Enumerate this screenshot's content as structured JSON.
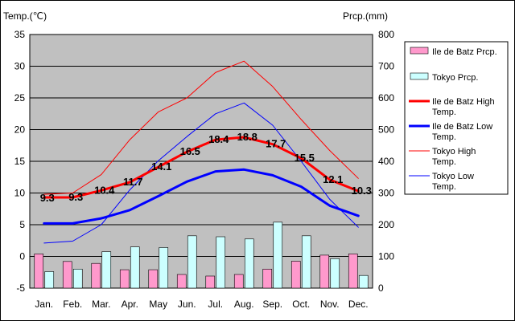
{
  "chart_data": {
    "type": "bar+line",
    "categories": [
      "Jan.",
      "Feb.",
      "Mar.",
      "Apr.",
      "May",
      "Jun.",
      "Jul.",
      "Aug.",
      "Sep.",
      "Oct.",
      "Nov.",
      "Dec."
    ],
    "y_left_label": "Temp.(℃)",
    "y_right_label": "Prcp.(mm)",
    "y_left_range": [
      -5,
      35
    ],
    "y_left_ticks": [
      "35",
      "30",
      "25",
      "20",
      "15",
      "10",
      "5",
      "0",
      "-5"
    ],
    "y_right_range": [
      0,
      800
    ],
    "y_right_ticks": [
      "800",
      "700",
      "600",
      "500",
      "400",
      "300",
      "200",
      "100",
      "0"
    ],
    "grid": true,
    "legend_position": "right",
    "bar_series": [
      {
        "name": "Ile de Batz Prcp.",
        "color": "#ff99cc",
        "values": [
          108,
          84,
          78,
          58,
          58,
          43,
          38,
          43,
          60,
          85,
          104,
          108
        ]
      },
      {
        "name": "Tokyo Prcp.",
        "color": "#ccffff",
        "values": [
          52,
          60,
          115,
          130,
          128,
          165,
          162,
          155,
          208,
          165,
          93,
          40
        ]
      }
    ],
    "line_series": [
      {
        "name": "Ile de Batz High Temp.",
        "color": "#ff0000",
        "width": 3,
        "values": [
          9.3,
          9.3,
          10.4,
          11.7,
          14.1,
          16.5,
          18.4,
          18.8,
          17.7,
          15.5,
          12.1,
          10.3
        ]
      },
      {
        "name": "Ile de Batz Low Temp.",
        "color": "#0000ff",
        "width": 3,
        "values": [
          5.2,
          5.2,
          6.0,
          7.3,
          9.5,
          11.8,
          13.4,
          13.7,
          12.8,
          11.0,
          8.0,
          6.4
        ]
      },
      {
        "name": "Tokyo High Temp.",
        "color": "#ff0000",
        "width": 1,
        "values": [
          9.8,
          10.0,
          12.9,
          18.4,
          22.8,
          25.0,
          29.0,
          30.8,
          26.8,
          21.6,
          16.7,
          12.3
        ]
      },
      {
        "name": "Tokyo Low Temp.",
        "color": "#0000ff",
        "width": 1,
        "values": [
          2.1,
          2.4,
          5.0,
          10.5,
          15.1,
          18.9,
          22.5,
          24.2,
          20.7,
          15.0,
          9.0,
          4.6
        ]
      }
    ],
    "data_labels": [
      "9.3",
      "9.3",
      "10.4",
      "11.7",
      "14.1",
      "16.5",
      "18.4",
      "18.8",
      "17.7",
      "15.5",
      "12.1",
      "10.3"
    ]
  }
}
